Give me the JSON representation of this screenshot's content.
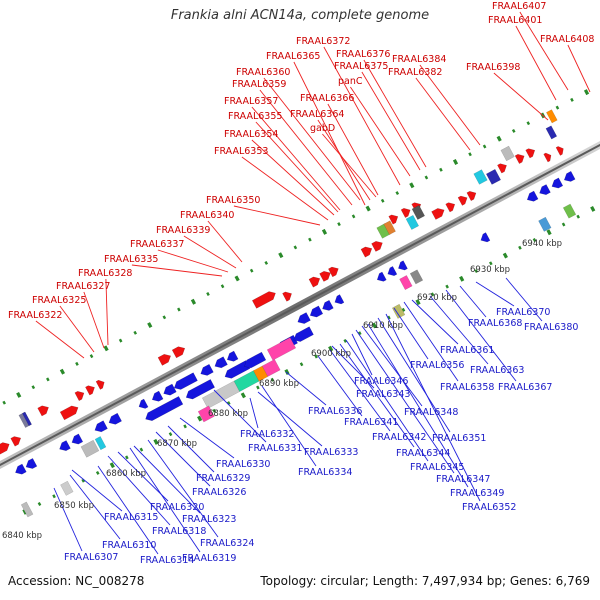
{
  "title": "Frankia alni ACN14a, complete genome",
  "footer": {
    "accession": "Accession: NC_008278",
    "summary": "Topology: circular; Length: 7,497,934 bp; Genes: 6,769"
  },
  "colors": {
    "forward_label": "#cc0000",
    "reverse_label": "#1a1ac8",
    "backbone": "#8a8a8a",
    "tick": "#2a8a2a"
  },
  "ticks": [
    "6840 kbp",
    "6850 kbp",
    "6860 kbp",
    "6870 kbp",
    "6880 kbp",
    "6890 kbp",
    "6900 kbp",
    "6910 kbp",
    "6920 kbp",
    "6930 kbp",
    "6940 kbp"
  ],
  "forward_labels": [
    "FRAAL6322",
    "FRAAL6325",
    "FRAAL6327",
    "FRAAL6328",
    "FRAAL6335",
    "FRAAL6337",
    "FRAAL6339",
    "FRAAL6340",
    "FRAAL6350",
    "FRAAL6353",
    "FRAAL6354",
    "FRAAL6355",
    "FRAAL6357",
    "FRAAL6359",
    "FRAAL6360",
    "FRAAL6365",
    "FRAAL6372",
    "FRAAL6364",
    "gabD",
    "FRAAL6366",
    "panC",
    "FRAAL6375",
    "FRAAL6376",
    "FRAAL6382",
    "FRAAL6384",
    "FRAAL6398",
    "FRAAL6401",
    "FRAAL6407",
    "FRAAL6408"
  ],
  "reverse_labels": [
    "FRAAL6307",
    "FRAAL6310",
    "FRAAL6314",
    "FRAAL6315",
    "FRAAL6318",
    "FRAAL6319",
    "FRAAL6320",
    "FRAAL6323",
    "FRAAL6324",
    "FRAAL6326",
    "FRAAL6329",
    "FRAAL6330",
    "FRAAL6331",
    "FRAAL6332",
    "FRAAL6333",
    "FRAAL6334",
    "FRAAL6336",
    "FRAAL6341",
    "FRAAL6342",
    "FRAAL6343",
    "FRAAL6344",
    "FRAAL6345",
    "FRAAL6346",
    "FRAAL6347",
    "FRAAL6348",
    "FRAAL6349",
    "FRAAL6351",
    "FRAAL6352",
    "FRAAL6356",
    "FRAAL6358",
    "FRAAL6361",
    "FRAAL6363",
    "FRAAL6367",
    "FRAAL6368",
    "FRAAL6370",
    "FRAAL6380"
  ]
}
